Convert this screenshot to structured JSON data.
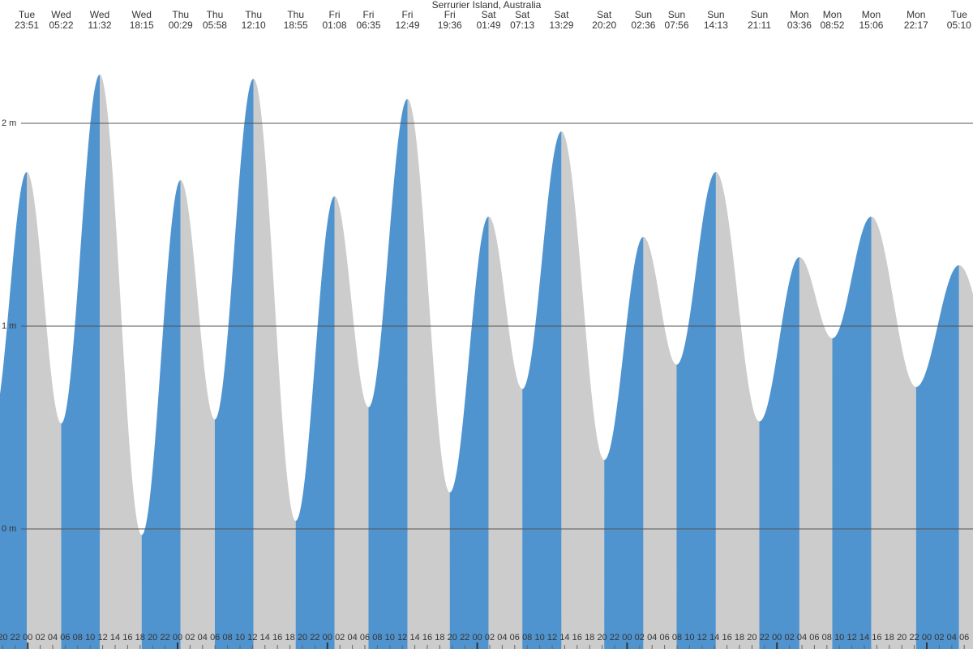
{
  "chart_data": {
    "type": "tide",
    "title": "Serrurier Island, Australia",
    "extremes_day": [
      "Tue",
      "Wed",
      "Wed",
      "Wed",
      "Thu",
      "Thu",
      "Thu",
      "Thu",
      "Fri",
      "Fri",
      "Fri",
      "Fri",
      "Sat",
      "Sat",
      "Sat",
      "Sat",
      "Sun",
      "Sun",
      "Sun",
      "Sun",
      "Mon",
      "Mon",
      "Mon",
      "Mon",
      "Tue"
    ],
    "extremes_time": [
      "23:51",
      "05:22",
      "11:32",
      "18:15",
      "00:29",
      "05:58",
      "12:10",
      "18:55",
      "01:08",
      "06:35",
      "12:49",
      "19:36",
      "01:49",
      "07:13",
      "13:29",
      "20:20",
      "02:36",
      "07:56",
      "14:13",
      "21:11",
      "03:36",
      "08:52",
      "15:06",
      "22:17",
      "05:10"
    ],
    "values": [
      1.76,
      0.52,
      2.24,
      -0.03,
      1.72,
      0.54,
      2.22,
      0.04,
      1.64,
      0.6,
      2.12,
      0.18,
      1.54,
      0.69,
      1.96,
      0.34,
      1.44,
      0.81,
      1.76,
      0.53,
      1.34,
      0.94,
      1.54,
      0.7,
      1.3
    ],
    "rising_color": "#4f93cf",
    "falling_color": "#cccccc",
    "ylim": [
      -0.592,
      2.608
    ],
    "yticks": [
      {
        "value": 0,
        "label": "0 m"
      },
      {
        "value": 1,
        "label": "1 m"
      },
      {
        "value": 2,
        "label": "2 m"
      }
    ],
    "grid": true,
    "hour_ticks": [
      "20",
      "22",
      "00",
      "02",
      "04",
      "06",
      "08",
      "10",
      "12",
      "14",
      "16",
      "18",
      "20",
      "22",
      "00",
      "02",
      "04",
      "06",
      "08",
      "10",
      "12",
      "14",
      "16",
      "18",
      "20",
      "22",
      "00",
      "02",
      "04",
      "06",
      "08",
      "10",
      "12",
      "14",
      "16",
      "18",
      "20",
      "22",
      "00",
      "02",
      "04",
      "06",
      "08",
      "10",
      "12",
      "14",
      "16",
      "18",
      "20",
      "22",
      "00",
      "02",
      "04",
      "06",
      "08",
      "10",
      "12",
      "14",
      "16",
      "18",
      "20",
      "22",
      "00",
      "02",
      "04",
      "06",
      "08",
      "10",
      "12",
      "14",
      "16",
      "18",
      "20",
      "22",
      "00",
      "02",
      "04",
      "06"
    ]
  }
}
